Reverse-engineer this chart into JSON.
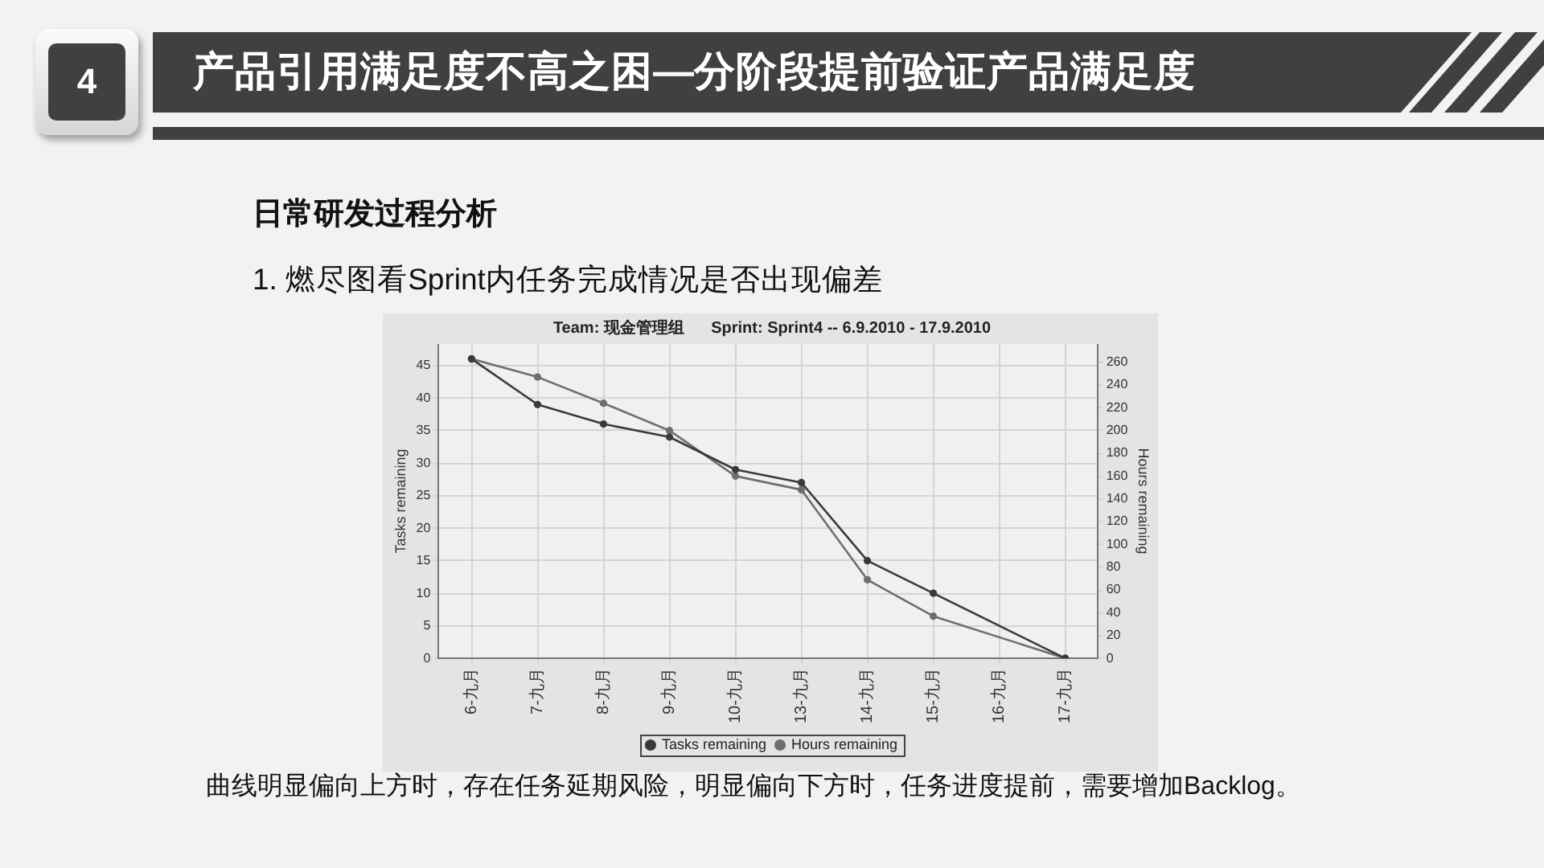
{
  "chart_data": {
    "type": "line",
    "title": "Team: 现金管理组      Sprint: Sprint4 -- 6.9.2010 - 17.9.2010",
    "ylabel": "Tasks remaining",
    "y2label": "Hours remaining",
    "categories": [
      "6-九月",
      "7-九月",
      "8-九月",
      "9-九月",
      "10-九月",
      "13-九月",
      "14-九月",
      "15-九月",
      "16-九月",
      "17-九月"
    ],
    "series": [
      {
        "name": "Tasks remaining",
        "color": "#3a3a3a",
        "axis": "y",
        "values": [
          46,
          39,
          36,
          34,
          29,
          27,
          15,
          10,
          null,
          0
        ]
      },
      {
        "name": "Hours remaining",
        "color": "#6e6e6e",
        "axis": "y2",
        "values": [
          263,
          247,
          224,
          200,
          160,
          148,
          69,
          37,
          null,
          0
        ]
      }
    ],
    "ylim": [
      0,
      48.3
    ],
    "yticks": [
      0,
      5,
      10,
      15,
      20,
      25,
      30,
      35,
      40,
      45
    ],
    "y2lim": [
      0,
      276
    ],
    "y2ticks": [
      0,
      20,
      40,
      60,
      80,
      100,
      120,
      140,
      160,
      180,
      200,
      220,
      240,
      260
    ],
    "grid": true,
    "legend": "bottom",
    "marker": "circle",
    "annotations": [
      "4",
      "产品引用满足度不高之困—分阶段提前验证产品满足度",
      "日常研发过程分析",
      "1. 燃尽图看Sprint内任务完成情况是否出现偏差",
      "曲线明显偏向上方时，存在任务延期风险，明显偏向下方时，任务进度提前，需要增加Backlog。"
    ]
  }
}
